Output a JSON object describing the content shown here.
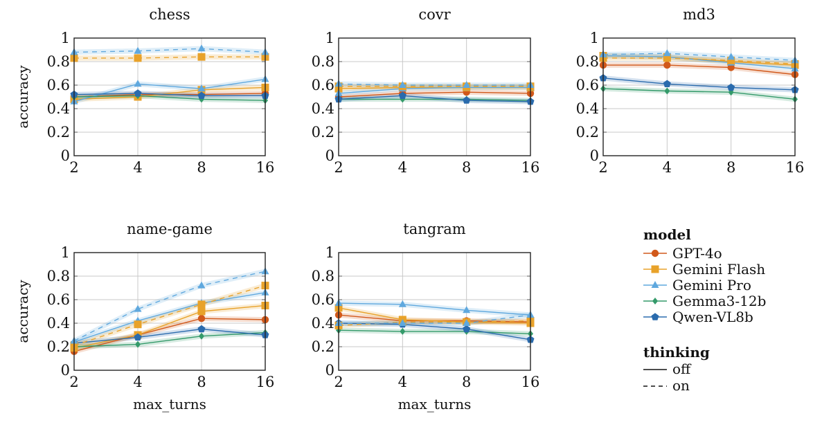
{
  "chart_data": {
    "type": "line",
    "x": [
      2,
      4,
      8,
      16
    ],
    "x_tick_labels": [
      "2",
      "4",
      "8",
      "16"
    ],
    "y_ticks": [
      0,
      0.2,
      0.4,
      0.6,
      0.8,
      1
    ],
    "y_tick_labels": [
      "0",
      "0.2",
      "0.4",
      "0.6",
      "0.8",
      "1"
    ],
    "ylim": [
      0,
      1
    ],
    "xscale": "log2",
    "xlabel": "max_turns",
    "ylabel": "accuracy",
    "grid": true,
    "bands": "shaded confidence interval around each line",
    "legend": {
      "placement": "bottom-right",
      "model_title": "model",
      "models": [
        {
          "name": "GPT-4o",
          "color": "#d1591b",
          "marker": "circle"
        },
        {
          "name": "Gemini Flash",
          "color": "#e8a22a",
          "marker": "square"
        },
        {
          "name": "Gemini Pro",
          "color": "#5fa8de",
          "marker": "triangle"
        },
        {
          "name": "Gemma3-12b",
          "color": "#349a6a",
          "marker": "diamond"
        },
        {
          "name": "Qwen-VL8b",
          "color": "#2a6bad",
          "marker": "pentagon"
        }
      ],
      "thinking_title": "thinking",
      "thinking": [
        {
          "name": "off",
          "style": "solid"
        },
        {
          "name": "on",
          "style": "dashed"
        }
      ]
    },
    "panels": [
      {
        "title": "chess",
        "series": [
          {
            "model": "GPT-4o",
            "thinking": "off",
            "values": [
              0.5,
              0.52,
              0.52,
              0.53
            ]
          },
          {
            "model": "Gemini Flash",
            "thinking": "off",
            "values": [
              0.48,
              0.5,
              0.56,
              0.58
            ]
          },
          {
            "model": "Gemini Pro",
            "thinking": "off",
            "values": [
              0.46,
              0.61,
              0.57,
              0.65
            ]
          },
          {
            "model": "Gemma3-12b",
            "thinking": "off",
            "values": [
              0.5,
              0.51,
              0.48,
              0.47
            ]
          },
          {
            "model": "Qwen-VL8b",
            "thinking": "off",
            "values": [
              0.52,
              0.53,
              0.51,
              0.51
            ]
          },
          {
            "model": "Gemini Flash",
            "thinking": "on",
            "values": [
              0.83,
              0.83,
              0.84,
              0.84
            ]
          },
          {
            "model": "Gemini Pro",
            "thinking": "on",
            "values": [
              0.88,
              0.89,
              0.91,
              0.88
            ]
          }
        ]
      },
      {
        "title": "covr",
        "series": [
          {
            "model": "GPT-4o",
            "thinking": "off",
            "values": [
              0.5,
              0.53,
              0.54,
              0.53
            ]
          },
          {
            "model": "Gemini Flash",
            "thinking": "off",
            "values": [
              0.57,
              0.58,
              0.58,
              0.58
            ]
          },
          {
            "model": "Gemini Pro",
            "thinking": "off",
            "values": [
              0.53,
              0.57,
              0.58,
              0.58
            ]
          },
          {
            "model": "Gemma3-12b",
            "thinking": "off",
            "values": [
              0.48,
              0.48,
              0.48,
              0.47
            ]
          },
          {
            "model": "Qwen-VL8b",
            "thinking": "off",
            "values": [
              0.48,
              0.51,
              0.47,
              0.46
            ]
          },
          {
            "model": "Gemini Flash",
            "thinking": "on",
            "values": [
              0.59,
              0.59,
              0.59,
              0.59
            ]
          },
          {
            "model": "Gemini Pro",
            "thinking": "on",
            "values": [
              0.61,
              0.6,
              0.6,
              0.6
            ]
          }
        ]
      },
      {
        "title": "md3",
        "series": [
          {
            "model": "GPT-4o",
            "thinking": "off",
            "values": [
              0.77,
              0.77,
              0.75,
              0.69
            ]
          },
          {
            "model": "Gemini Flash",
            "thinking": "off",
            "values": [
              0.85,
              0.84,
              0.8,
              0.77
            ]
          },
          {
            "model": "Gemini Pro",
            "thinking": "off",
            "values": [
              0.85,
              0.84,
              0.79,
              0.74
            ]
          },
          {
            "model": "Gemma3-12b",
            "thinking": "off",
            "values": [
              0.57,
              0.55,
              0.54,
              0.48
            ]
          },
          {
            "model": "Qwen-VL8b",
            "thinking": "off",
            "values": [
              0.66,
              0.61,
              0.58,
              0.56
            ]
          },
          {
            "model": "Gemini Flash",
            "thinking": "on",
            "values": [
              0.83,
              0.83,
              0.81,
              0.78
            ]
          },
          {
            "model": "Gemini Pro",
            "thinking": "on",
            "values": [
              0.86,
              0.87,
              0.84,
              0.81
            ]
          }
        ]
      },
      {
        "title": "name-game",
        "series": [
          {
            "model": "GPT-4o",
            "thinking": "off",
            "values": [
              0.16,
              0.3,
              0.44,
              0.43
            ]
          },
          {
            "model": "Gemini Flash",
            "thinking": "off",
            "values": [
              0.19,
              0.3,
              0.5,
              0.55
            ]
          },
          {
            "model": "Gemini Pro",
            "thinking": "off",
            "values": [
              0.24,
              0.42,
              0.57,
              0.66
            ]
          },
          {
            "model": "Gemma3-12b",
            "thinking": "off",
            "values": [
              0.2,
              0.22,
              0.29,
              0.32
            ]
          },
          {
            "model": "Qwen-VL8b",
            "thinking": "off",
            "values": [
              0.23,
              0.28,
              0.35,
              0.3
            ]
          },
          {
            "model": "Gemini Flash",
            "thinking": "on",
            "values": [
              0.21,
              0.39,
              0.56,
              0.72
            ]
          },
          {
            "model": "Gemini Pro",
            "thinking": "on",
            "values": [
              0.25,
              0.52,
              0.72,
              0.84
            ]
          }
        ]
      },
      {
        "title": "tangram",
        "series": [
          {
            "model": "GPT-4o",
            "thinking": "off",
            "values": [
              0.47,
              0.42,
              0.42,
              0.41
            ]
          },
          {
            "model": "Gemini Flash",
            "thinking": "off",
            "values": [
              0.53,
              0.43,
              0.41,
              0.4
            ]
          },
          {
            "model": "Gemini Pro",
            "thinking": "off",
            "values": [
              0.57,
              0.56,
              0.51,
              0.47
            ]
          },
          {
            "model": "Gemma3-12b",
            "thinking": "off",
            "values": [
              0.34,
              0.33,
              0.33,
              0.31
            ]
          },
          {
            "model": "Qwen-VL8b",
            "thinking": "off",
            "values": [
              0.4,
              0.39,
              0.35,
              0.26
            ]
          },
          {
            "model": "Gemini Flash",
            "thinking": "on",
            "values": [
              0.38,
              0.41,
              0.41,
              0.42
            ]
          },
          {
            "model": "Gemini Pro",
            "thinking": "on",
            "values": [
              0.4,
              0.4,
              0.4,
              0.47
            ]
          }
        ]
      }
    ]
  }
}
